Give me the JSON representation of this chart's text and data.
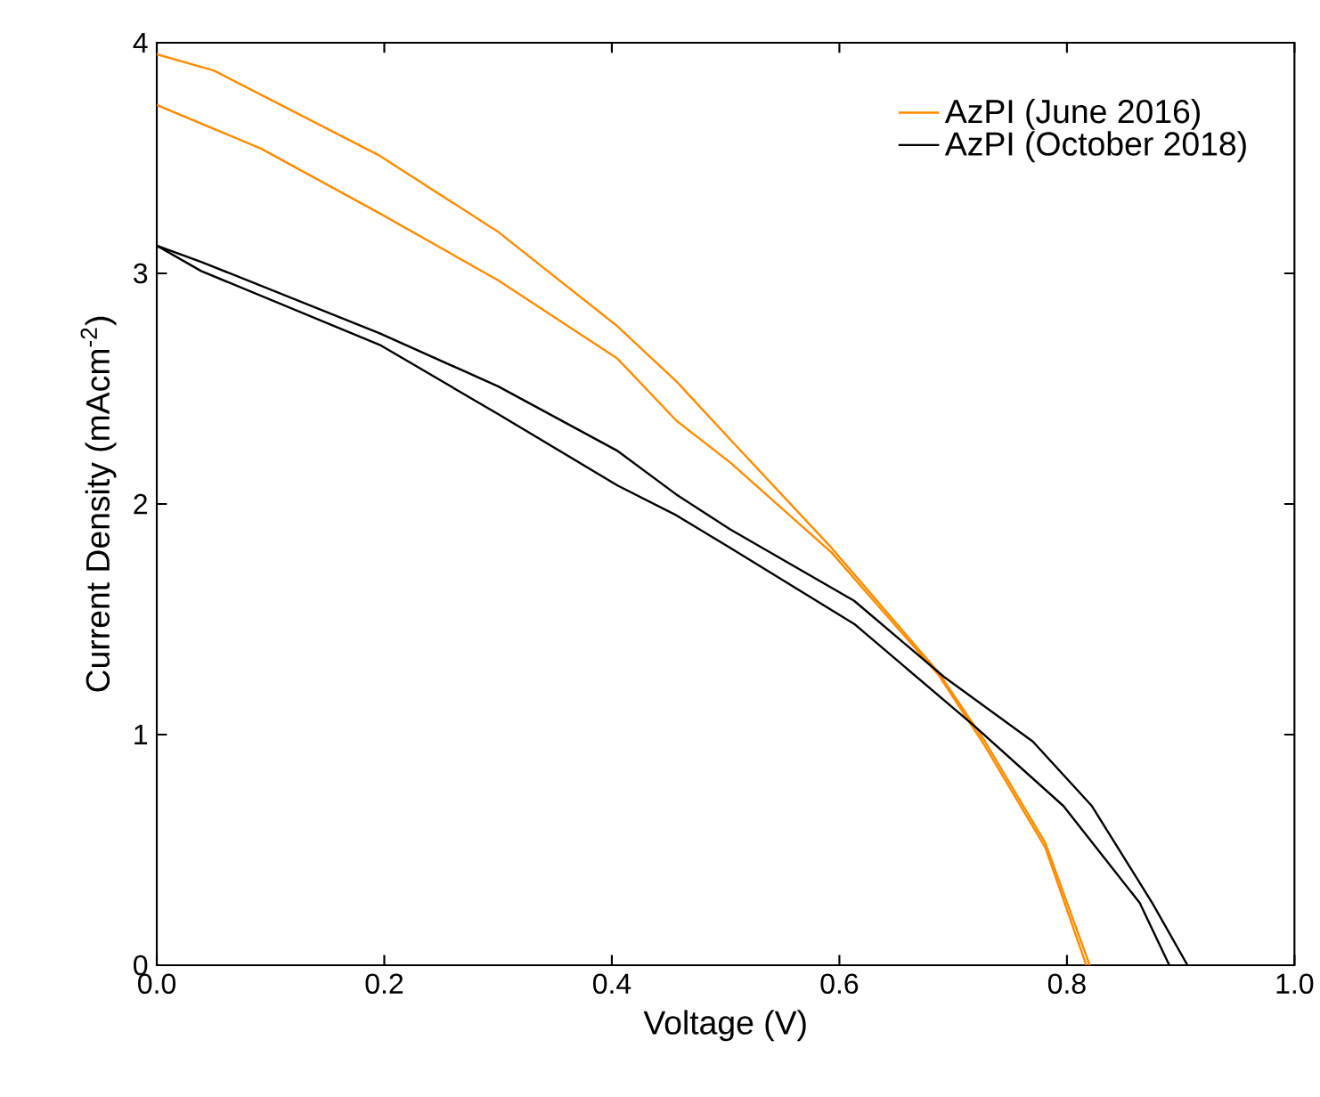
{
  "chart_data": {
    "type": "line",
    "xlabel": "Voltage (V)",
    "ylabel": "Current Density (mAcm$^{-2}$)",
    "xlim": [
      0,
      1.0
    ],
    "ylim": [
      0,
      4
    ],
    "xticks": [
      {
        "value": 0,
        "label": "0.0"
      },
      {
        "value": 0.2,
        "label": "0.2"
      },
      {
        "value": 0.4,
        "label": "0.4"
      },
      {
        "value": 0.6,
        "label": "0.6"
      },
      {
        "value": 0.8,
        "label": "0.8"
      },
      {
        "value": 1.0,
        "label": "1.0"
      }
    ],
    "yticks": [
      0,
      1,
      2,
      3,
      4
    ],
    "grid": false,
    "legend": "top right",
    "marker": "none",
    "line_style": "solid",
    "series": [
      {
        "name": "AzPI (June 2016)",
        "color": "#ff8c00",
        "x": [
          0,
          0.05,
          0.196,
          0.3,
          0.405,
          0.457,
          0.504,
          0.593,
          0.687,
          0.728,
          0.781,
          0.82
        ],
        "values": [
          3.95,
          3.88,
          3.51,
          3.18,
          2.77,
          2.53,
          2.28,
          1.81,
          1.27,
          0.97,
          0.53,
          0
        ]
      },
      {
        "color": "#ff8c00",
        "x": [
          0,
          0.092,
          0.196,
          0.3,
          0.405,
          0.457,
          0.504,
          0.593,
          0.687,
          0.728,
          0.781,
          0.817
        ],
        "values": [
          3.73,
          3.54,
          3.26,
          2.97,
          2.63,
          2.36,
          2.18,
          1.79,
          1.26,
          0.95,
          0.51,
          0
        ]
      },
      {
        "name": "AzPI (October 2018)",
        "color": "#000000",
        "x": [
          0,
          0.039,
          0.196,
          0.3,
          0.405,
          0.457,
          0.504,
          0.613,
          0.692,
          0.77,
          0.822,
          0.875,
          0.906
        ],
        "values": [
          3.12,
          3.05,
          2.74,
          2.51,
          2.23,
          2.04,
          1.89,
          1.58,
          1.25,
          0.97,
          0.69,
          0.27,
          0
        ]
      },
      {
        "color": "#000000",
        "x": [
          0,
          0.039,
          0.196,
          0.3,
          0.405,
          0.457,
          0.504,
          0.613,
          0.718,
          0.797,
          0.864,
          0.89
        ],
        "values": [
          3.12,
          3.01,
          2.69,
          2.39,
          2.08,
          1.95,
          1.81,
          1.48,
          1.04,
          0.69,
          0.27,
          0
        ]
      }
    ]
  }
}
